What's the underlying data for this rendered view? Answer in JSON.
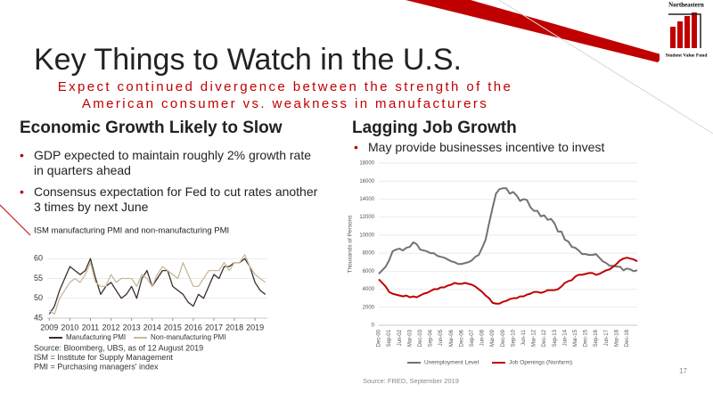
{
  "logo": {
    "name": "Northeastern",
    "fund": "Student Value Fund"
  },
  "title": "Key Things to Watch in the U.S.",
  "subtitle": "Expect continued divergence between the strength of the American consumer vs. weakness in manufacturers",
  "left": {
    "heading": "Economic Growth Likely to Slow",
    "bullets": [
      "GDP expected to maintain roughly 2% growth rate in quarters ahead",
      "Consensus expectation for Fed to cut rates another 3 times by next June"
    ]
  },
  "right": {
    "heading": "Lagging Job Growth",
    "bullets": [
      "May provide businesses incentive to invest"
    ]
  },
  "page_number": "17",
  "chart_data": [
    {
      "type": "line",
      "title": "ISM manufacturing PMI and non-manufacturing PMI",
      "x": [
        2009,
        2009.25,
        2009.5,
        2009.75,
        2010,
        2010.25,
        2010.5,
        2010.75,
        2011,
        2011.25,
        2011.5,
        2011.75,
        2012,
        2012.25,
        2012.5,
        2012.75,
        2013,
        2013.25,
        2013.5,
        2013.75,
        2014,
        2014.25,
        2014.5,
        2014.75,
        2015,
        2015.25,
        2015.5,
        2015.75,
        2016,
        2016.25,
        2016.5,
        2016.75,
        2017,
        2017.25,
        2017.5,
        2017.75,
        2018,
        2018.25,
        2018.5,
        2018.75,
        2019,
        2019.25,
        2019.5
      ],
      "xlim": [
        2008.9,
        2019.6
      ],
      "xticks": [
        2009,
        2010,
        2011,
        2012,
        2013,
        2014,
        2015,
        2016,
        2017,
        2018,
        2019
      ],
      "ylim": [
        45,
        65
      ],
      "yticks": [
        45,
        50,
        55,
        60
      ],
      "grid": true,
      "series": [
        {
          "name": "Manufacturing PMI",
          "color": "#3b2e2a",
          "values": [
            46,
            48,
            52,
            55,
            58,
            57,
            56,
            57,
            60,
            55,
            51,
            53,
            54,
            52,
            50,
            51,
            53,
            50,
            55,
            57,
            53,
            55,
            57,
            57,
            53,
            52,
            51,
            49,
            48,
            51,
            50,
            53,
            56,
            55,
            58,
            58,
            59,
            59,
            60,
            58,
            54,
            52,
            51
          ]
        },
        {
          "name": "Non-manufacturing PMI",
          "color": "#c8b99a",
          "values": [
            47,
            46,
            50,
            52,
            54,
            55,
            54,
            56,
            59,
            54,
            53,
            53,
            56,
            54,
            55,
            55,
            55,
            53,
            56,
            55,
            53,
            56,
            58,
            57,
            56,
            55,
            59,
            56,
            53,
            53,
            55,
            57,
            57,
            57,
            59,
            57,
            59,
            59,
            61,
            58,
            56,
            55,
            54
          ]
        }
      ],
      "notes": [
        "Source: Bloomberg, UBS, as of 12 August 2019",
        "ISM = Institute for Supply Management",
        "PMI = Purchasing managers' index"
      ]
    },
    {
      "type": "line",
      "ylabel": "Thousands of Persons",
      "categories": [
        "Dec-00",
        null,
        null,
        "Sep-01",
        null,
        null,
        "Jun-02",
        null,
        null,
        "Mar-03",
        null,
        null,
        "Dec-03",
        null,
        null,
        "Sep-04",
        null,
        null,
        "Jun-05",
        null,
        null,
        "Mar-06",
        null,
        null,
        "Dec-06",
        null,
        null,
        "Sep-07",
        null,
        null,
        "Jun-08",
        null,
        null,
        "Mar-09",
        null,
        null,
        "Dec-09",
        null,
        null,
        "Sep-10",
        null,
        null,
        "Jun-11",
        null,
        null,
        "Mar-12",
        null,
        null,
        "Dec-12",
        null,
        null,
        "Sep-13",
        null,
        null,
        "Jun-14",
        null,
        null,
        "Mar-15",
        null,
        null,
        "Dec-15",
        null,
        null,
        "Sep-16",
        null,
        null,
        "Jun-17",
        null,
        null,
        "Mar-18",
        null,
        null,
        "Dec-18",
        null,
        null,
        null
      ],
      "ylim": [
        0,
        18000
      ],
      "yticks": [
        0,
        2000,
        4000,
        6000,
        8000,
        10000,
        12000,
        14000,
        16000,
        18000
      ],
      "grid": true,
      "series": [
        {
          "name": "Unemployment Level",
          "color": "#767171",
          "values": [
            5700,
            6100,
            6500,
            7200,
            8200,
            8400,
            8500,
            8300,
            8600,
            8700,
            9200,
            9000,
            8400,
            8300,
            8200,
            8000,
            8000,
            7700,
            7600,
            7500,
            7300,
            7100,
            7000,
            6800,
            6800,
            6900,
            7000,
            7200,
            7600,
            7800,
            8600,
            9500,
            11300,
            13000,
            14600,
            15100,
            15200,
            15200,
            14600,
            14800,
            14400,
            13800,
            14000,
            13900,
            13100,
            12700,
            12700,
            12100,
            12200,
            11700,
            11800,
            11300,
            10400,
            10400,
            9500,
            9300,
            8700,
            8600,
            8300,
            7900,
            7900,
            7800,
            7800,
            7900,
            7500,
            7100,
            6900,
            6600,
            6600,
            6500,
            6500,
            6100,
            6300,
            6200,
            6000,
            6100
          ]
        },
        {
          "name": "Job Openings (Nonfarm)",
          "color": "#c00000",
          "values": [
            5100,
            4700,
            4300,
            3700,
            3500,
            3400,
            3300,
            3200,
            3300,
            3100,
            3200,
            3100,
            3300,
            3500,
            3600,
            3800,
            4000,
            4000,
            4200,
            4200,
            4400,
            4500,
            4700,
            4600,
            4600,
            4700,
            4600,
            4500,
            4300,
            4000,
            3700,
            3300,
            3000,
            2500,
            2400,
            2400,
            2600,
            2700,
            2900,
            3000,
            3000,
            3200,
            3200,
            3400,
            3500,
            3700,
            3700,
            3600,
            3700,
            3900,
            3900,
            3900,
            4000,
            4300,
            4700,
            4900,
            5000,
            5400,
            5600,
            5600,
            5700,
            5800,
            5800,
            5600,
            5700,
            5900,
            6100,
            6200,
            6500,
            6800,
            7200,
            7400,
            7500,
            7400,
            7300,
            7100
          ]
        }
      ],
      "notes": [
        "Source:  FRED, September 2019"
      ]
    }
  ]
}
